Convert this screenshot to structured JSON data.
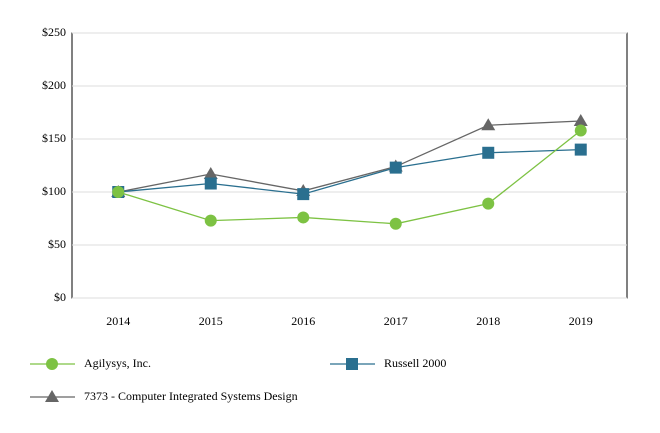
{
  "chart_data": {
    "type": "line",
    "categories": [
      "2014",
      "2015",
      "2016",
      "2017",
      "2018",
      "2019"
    ],
    "series": [
      {
        "name": "Agilysys, Inc.",
        "color": "#7dc243",
        "marker": "circle",
        "values": [
          100,
          73,
          76,
          70,
          89,
          158
        ]
      },
      {
        "name": "Russell 2000",
        "color": "#2a6f8f",
        "marker": "square",
        "values": [
          100,
          108,
          98,
          123,
          137,
          140
        ]
      },
      {
        "name": "7373 - Computer Integrated Systems Design",
        "color": "#666666",
        "marker": "triangle",
        "values": [
          100,
          117,
          101,
          124,
          163,
          167
        ]
      }
    ],
    "ylim": [
      0,
      250
    ],
    "yticks": [
      {
        "value": 0,
        "label": "$0"
      },
      {
        "value": 50,
        "label": "$50"
      },
      {
        "value": 100,
        "label": "$100"
      },
      {
        "value": 150,
        "label": "$150"
      },
      {
        "value": 200,
        "label": "$200"
      },
      {
        "value": 250,
        "label": "$250"
      }
    ],
    "grid": true,
    "legend": "bottom"
  }
}
